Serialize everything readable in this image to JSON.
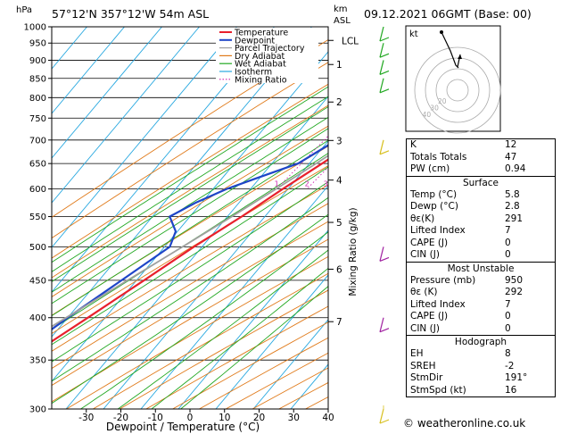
{
  "header": {
    "location": "57°12'N  357°12'W  54m  ASL",
    "date": "09.12.2021  06GMT  (Base: 00)",
    "hpa_label": "hPa",
    "km_label": "km",
    "asl_label": "ASL"
  },
  "chart_data": {
    "type": "line",
    "xlabel": "Dewpoint / Temperature (°C)",
    "ylabel_right": "Mixing Ratio (g/kg)",
    "x_ticks": [
      -30,
      -20,
      -10,
      0,
      10,
      20,
      30,
      40
    ],
    "pressure_levels": [
      300,
      350,
      400,
      450,
      500,
      550,
      600,
      650,
      700,
      750,
      800,
      850,
      900,
      950,
      1000
    ],
    "xlim": [
      -40,
      40
    ],
    "ylim_hpa": [
      1000,
      300
    ],
    "km_ticks": [
      {
        "km": "7",
        "p": 395
      },
      {
        "km": "6",
        "p": 466
      },
      {
        "km": "5",
        "p": 540
      },
      {
        "km": "4",
        "p": 617
      },
      {
        "km": "3",
        "p": 699
      },
      {
        "km": "2",
        "p": 789
      },
      {
        "km": "1",
        "p": 888
      }
    ],
    "lcl": {
      "label": "LCL",
      "p": 958
    },
    "mixing_ratio_labels": [
      "1",
      "2",
      "3",
      "4",
      "6",
      "8",
      "10",
      "16",
      "20",
      "25"
    ],
    "legend": [
      "Temperature",
      "Dewpoint",
      "Parcel Trajectory",
      "Dry Adiabat",
      "Wet Adiabat",
      "Isotherm",
      "Mixing Ratio"
    ],
    "colors": {
      "temperature": "#e8202c",
      "dewpoint": "#1e45c8",
      "parcel": "#a0a0a0",
      "dry_adiabat": "#e07a1a",
      "wet_adiabat": "#22a822",
      "isotherm": "#28a8e0",
      "mixing_ratio": "#d020b0"
    },
    "series": [
      {
        "name": "Temperature",
        "points": [
          [
            1000,
            5.8
          ],
          [
            975,
            4.2
          ],
          [
            950,
            2.8
          ],
          [
            925,
            1.2
          ],
          [
            900,
            0.0
          ],
          [
            850,
            -2.6
          ],
          [
            800,
            -5.6
          ],
          [
            750,
            -8.8
          ],
          [
            700,
            -12.4
          ],
          [
            650,
            -16.6
          ],
          [
            600,
            -21.4
          ],
          [
            550,
            -26.2
          ],
          [
            500,
            -32.2
          ],
          [
            450,
            -38.0
          ],
          [
            400,
            -44.6
          ],
          [
            350,
            -52.4
          ],
          [
            300,
            -57.6
          ]
        ]
      },
      {
        "name": "Dewpoint",
        "points": [
          [
            1000,
            2.8
          ],
          [
            975,
            2.0
          ],
          [
            950,
            1.0
          ],
          [
            925,
            -0.4
          ],
          [
            900,
            -2.0
          ],
          [
            850,
            -6.0
          ],
          [
            800,
            -10.2
          ],
          [
            750,
            -15.0
          ],
          [
            700,
            -18.0
          ],
          [
            650,
            -23.0
          ],
          [
            620,
            -31.0
          ],
          [
            600,
            -36.4
          ],
          [
            575,
            -41.5
          ],
          [
            550,
            -45.4
          ],
          [
            525,
            -40.5
          ],
          [
            500,
            -38.6
          ],
          [
            450,
            -44.0
          ],
          [
            400,
            -50.0
          ],
          [
            350,
            -56.0
          ],
          [
            300,
            -71.0
          ]
        ]
      },
      {
        "name": "Parcel Trajectory",
        "points": [
          [
            1000,
            5.8
          ],
          [
            958,
            3.1
          ],
          [
            900,
            0.3
          ],
          [
            850,
            -2.8
          ],
          [
            800,
            -6.2
          ],
          [
            750,
            -9.8
          ],
          [
            700,
            -13.8
          ],
          [
            650,
            -18.2
          ],
          [
            600,
            -23.2
          ],
          [
            550,
            -28.8
          ],
          [
            500,
            -35.2
          ],
          [
            450,
            -42.4
          ],
          [
            400,
            -50.4
          ],
          [
            350,
            -59.4
          ],
          [
            300,
            -68.8
          ]
        ]
      }
    ]
  },
  "hodograph": {
    "label": "kt",
    "ring_labels": [
      "20",
      "30",
      "40"
    ]
  },
  "indices": {
    "basic": [
      {
        "label": "K",
        "value": "12"
      },
      {
        "label": "Totals Totals",
        "value": "47"
      },
      {
        "label": "PW (cm)",
        "value": "0.94"
      }
    ],
    "surface_title": "Surface",
    "surface": [
      {
        "label": "Temp (°C)",
        "value": "5.8"
      },
      {
        "label": "Dewp (°C)",
        "value": "2.8"
      },
      {
        "label": "θε(K)",
        "value": "291"
      },
      {
        "label": "Lifted Index",
        "value": "7"
      },
      {
        "label": "CAPE (J)",
        "value": "0"
      },
      {
        "label": "CIN (J)",
        "value": "0"
      }
    ],
    "unstable_title": "Most Unstable",
    "unstable": [
      {
        "label": "Pressure (mb)",
        "value": "950"
      },
      {
        "label": "θε (K)",
        "value": "292"
      },
      {
        "label": "Lifted Index",
        "value": "7"
      },
      {
        "label": "CAPE (J)",
        "value": "0"
      },
      {
        "label": "CIN (J)",
        "value": "0"
      }
    ],
    "hodo_title": "Hodograph",
    "hodo": [
      {
        "label": "EH",
        "value": "8"
      },
      {
        "label": "SREH",
        "value": "-2"
      },
      {
        "label": "StmDir",
        "value": "191°"
      },
      {
        "label": "StmSpd (kt)",
        "value": "16"
      }
    ]
  },
  "footer": {
    "copyright": "© weatheronline.co.uk"
  }
}
